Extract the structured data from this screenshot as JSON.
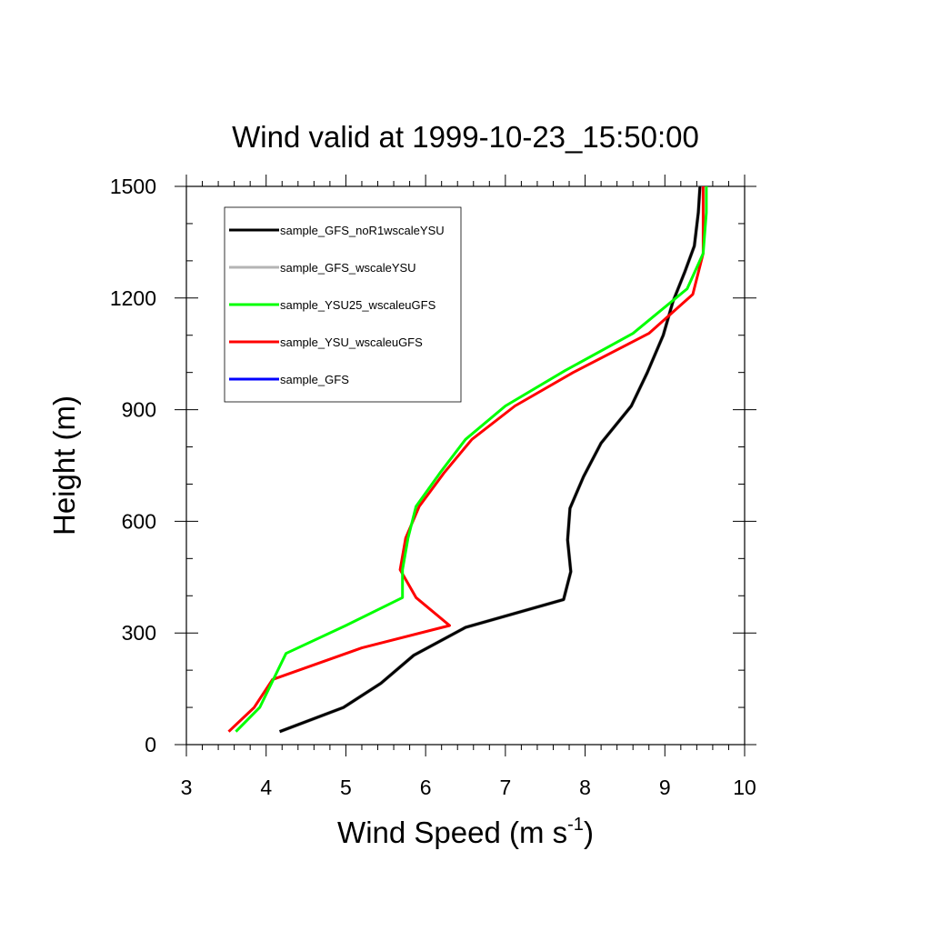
{
  "chart_data": {
    "type": "line",
    "title": "Wind valid at 1999-10-23_15:50:00",
    "xlabel": {
      "base": "Wind Speed (m s",
      "sup": "-1",
      "end": ")"
    },
    "ylabel": "Height (m)",
    "xlim": [
      3,
      10
    ],
    "ylim": [
      0,
      1500
    ],
    "xticks": [
      3,
      4,
      5,
      6,
      7,
      8,
      9,
      10
    ],
    "yticks": [
      0,
      300,
      600,
      900,
      1200,
      1500
    ],
    "grid": false,
    "legend_position": "top-left",
    "series": [
      {
        "name": "sample_GFS_noR1wscaleYSU",
        "color": "#000000",
        "x": [
          4.17,
          4.97,
          5.44,
          5.85,
          6.5,
          7.73,
          7.82,
          7.78,
          7.81,
          7.98,
          8.2,
          8.58,
          8.78,
          8.98,
          9.1,
          9.25,
          9.37,
          9.42,
          9.44
        ],
        "y": [
          35,
          100,
          165,
          240,
          315,
          390,
          465,
          550,
          635,
          720,
          810,
          910,
          1000,
          1100,
          1190,
          1270,
          1340,
          1430,
          1500
        ]
      },
      {
        "name": "sample_GFS_wscaleYSU",
        "color": "#b4b4b4",
        "x": [
          4.17,
          4.97,
          5.44,
          5.85,
          6.5,
          7.73,
          7.82,
          7.78,
          7.81,
          7.98,
          8.2,
          8.58,
          8.78,
          8.98,
          9.1,
          9.25,
          9.37,
          9.42,
          9.44
        ],
        "y": [
          35,
          100,
          165,
          240,
          315,
          390,
          465,
          550,
          635,
          720,
          810,
          910,
          1000,
          1100,
          1190,
          1270,
          1340,
          1430,
          1500
        ]
      },
      {
        "name": "sample_YSU25_wscaleuGFS",
        "color": "#00ff00",
        "x": [
          3.62,
          3.92,
          4.25,
          5.0,
          5.71,
          5.71,
          5.78,
          5.88,
          6.18,
          6.5,
          7.0,
          7.75,
          8.6,
          9.28,
          9.48,
          9.52,
          9.52
        ],
        "y": [
          35,
          100,
          245,
          320,
          395,
          470,
          555,
          640,
          730,
          820,
          910,
          1005,
          1105,
          1225,
          1320,
          1430,
          1500
        ]
      },
      {
        "name": "sample_YSU_wscaleuGFS",
        "color": "#ff0000",
        "x": [
          3.53,
          3.85,
          4.08,
          5.2,
          6.3,
          5.88,
          5.68,
          5.75,
          5.92,
          6.23,
          6.58,
          7.12,
          7.85,
          8.8,
          9.35,
          9.48,
          9.48,
          9.48
        ],
        "y": [
          35,
          100,
          175,
          260,
          320,
          395,
          470,
          555,
          640,
          730,
          820,
          910,
          1000,
          1105,
          1210,
          1320,
          1430,
          1500
        ]
      },
      {
        "name": "sample_GFS",
        "color": "#0000ff",
        "x": [
          4.17,
          4.97,
          5.44,
          5.85,
          6.5,
          7.73,
          7.82,
          7.78,
          7.81,
          7.98,
          8.2,
          8.58,
          8.78,
          8.98,
          9.1,
          9.25,
          9.37,
          9.42,
          9.44
        ],
        "y": [
          35,
          100,
          165,
          240,
          315,
          390,
          465,
          550,
          635,
          720,
          810,
          910,
          1000,
          1100,
          1190,
          1270,
          1340,
          1430,
          1500
        ]
      }
    ],
    "draw_order": [
      4,
      1,
      0,
      3,
      2
    ]
  }
}
